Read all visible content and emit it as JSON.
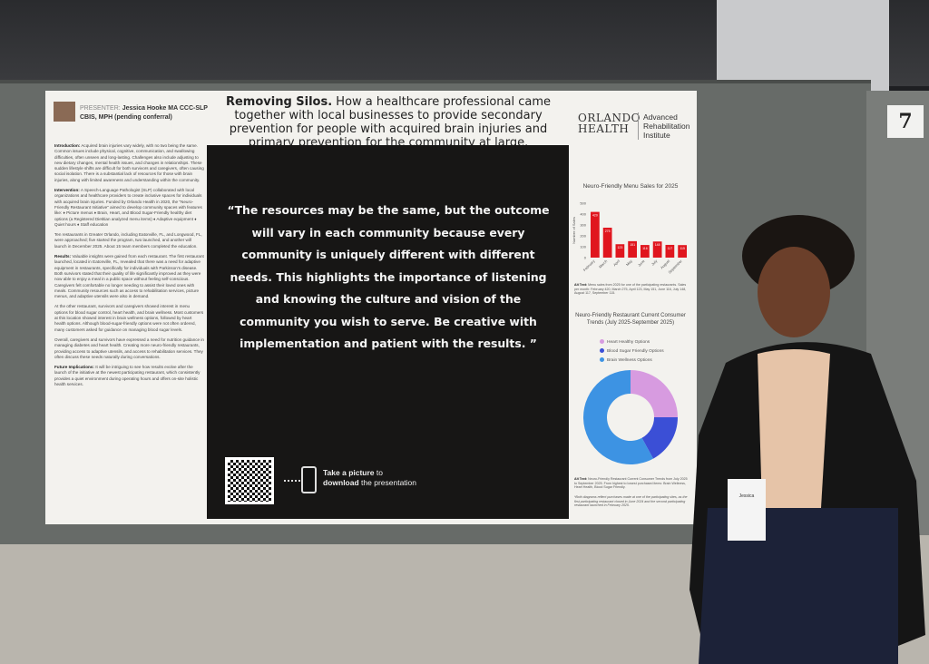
{
  "booth_number": "7",
  "poster": {
    "presenter_label": "PRESENTER:",
    "presenter_name": "Jessica Hooke MA CCC-SLP",
    "presenter_credentials": "CBIS, MPH (pending conferral)",
    "title_bold": "Removing Silos.",
    "title_rest": "How a healthcare professional came together with local businesses to provide secondary prevention for people with acquired brain injuries and primary prevention for the community at large.",
    "sections": [
      {
        "heading": "Introduction:",
        "text": "Acquired brain injuries vary widely, with no two being the same. Common issues include physical, cognitive, communication, and swallowing difficulties, often unseen and long-lasting. Challenges also include adjusting to new dietary changes, mental health issues, and changes in relationships. These sudden lifestyle shifts are difficult for both survivors and caregivers, often causing social isolation. There is a substantial lack of resources for those with brain injuries, along with limited awareness and understanding within the community."
      },
      {
        "heading": "Intervention:",
        "text": "A Speech-Language Pathologist (SLP) collaborated with local organizations and healthcare providers to create inclusive spaces for individuals with acquired brain injuries. Funded by Orlando Health in 2020, the \"Neuro-Friendly Restaurant Initiative\" aimed to develop community spaces with features like: ♦ Picture menus ♦ Brain, Heart, and Blood Sugar-Friendly healthy diet options (a Registered Dietitian analyzed menu items) ♦ Adaptive equipment ♦ Quiet hours ♦ Staff education"
      },
      {
        "heading": "",
        "text": "Ten restaurants in Greater Orlando, including Eatonville, FL, and Longwood, FL, were approached; five started the program, two launched, and another will launch in December 2025. About 15 team members completed the education."
      },
      {
        "heading": "Results:",
        "text": "Valuable insights were gained from each restaurant. The first restaurant launched, located in Eatonville, FL, revealed that there was a need for adaptive equipment in restaurants, specifically for individuals with Parkinson's disease. Both survivors stated that their quality of life significantly improved as they were now able to enjoy a meal in a public space without feeling self-conscious. Caregivers felt comfortable no longer needing to assist their loved ones with meals. Community resources such as access to rehabilitation services, picture menus, and adaptive utensils were also in demand."
      },
      {
        "heading": "",
        "text": "At the other restaurant, survivors and caregivers showed interest in menu options for blood sugar control, heart health, and brain wellness. Most customers at this location showed interest in brain wellness options, followed by heart health options. Although blood-sugar-friendly options were not often ordered, many customers asked for guidance on managing blood sugar levels."
      },
      {
        "heading": "",
        "text": "Overall, caregivers and survivors have expressed a need for nutrition guidance in managing diabetes and heart health. Creating more neuro-friendly restaurants, providing access to adaptive utensils, and access to rehabilitation services. They often discuss these needs naturally during conversations."
      },
      {
        "heading": "Future Implications:",
        "text": "It will be intriguing to see how results evolve after the launch of the initiative at the newest participating restaurant, which consistently provides a quiet environment during operating hours and offers on-site holistic health services."
      }
    ],
    "quote": "“The resources may be the same, but the outcome will vary in each community because every community is uniquely different with different needs. This highlights the importance of listening and knowing the culture and vision of the community you wish to serve. Be creative with implementation and patient with the results. ”",
    "cta_bold1": "Take a picture",
    "cta_rest1": " to",
    "cta_bold2": "download",
    "cta_rest2": " the presentation",
    "logo_main_1": "ORLANDO",
    "logo_main_2": "HEALTH",
    "logo_sub": "Advanced Rehabilitation Institute",
    "bar_alt_label": "Alt Text:",
    "bar_alt_text": "Menu sales from 2025 for one of the participating restaurants. Sales per month: February 420, March 275, April 123, May 151, June 116, July 148, August 117, September 115.",
    "donut_alt_label": "Alt Text:",
    "donut_alt_text": "Neuro-Friendly Restaurant Current Consumer Trends from July 2025 to September 2025. From highest to lowest purchased items: Brain Wellness, Heart Health, Blood Sugar Friendly.",
    "footnote": "*Both diagrams reflect purchases made at one of the participating sites, as the first participating restaurant closed in June 2024 and the second participating restaurant launched in February 2025."
  },
  "chart_data": [
    {
      "type": "bar",
      "title": "Neuro-Friendly Menu Sales for 2025",
      "ylabel": "Number of Sales",
      "xlabel": "",
      "categories": [
        "February",
        "March",
        "April",
        "May",
        "June",
        "July",
        "August",
        "September"
      ],
      "values": [
        420,
        275,
        123,
        151,
        116,
        148,
        117,
        115
      ],
      "yticks": [
        0,
        100,
        200,
        300,
        400,
        500
      ],
      "ylim": [
        0,
        500
      ],
      "color": "#e0161e",
      "data_labels": true
    },
    {
      "type": "pie",
      "title": "Neuro-Friendly Restaurant Current Consumer Trends (July 2025-September 2025)",
      "donut": true,
      "legend_placement": "top",
      "series": [
        {
          "name": "Heart Healthy Options",
          "value": 25,
          "color": "#d79be0"
        },
        {
          "name": "Blood Sugar Friendly Options",
          "value": 17,
          "color": "#3b4fd6"
        },
        {
          "name": "Brain Wellness Options",
          "value": 58,
          "color": "#3d93e3"
        }
      ]
    }
  ],
  "badge": {
    "name_label": "Jessica"
  }
}
